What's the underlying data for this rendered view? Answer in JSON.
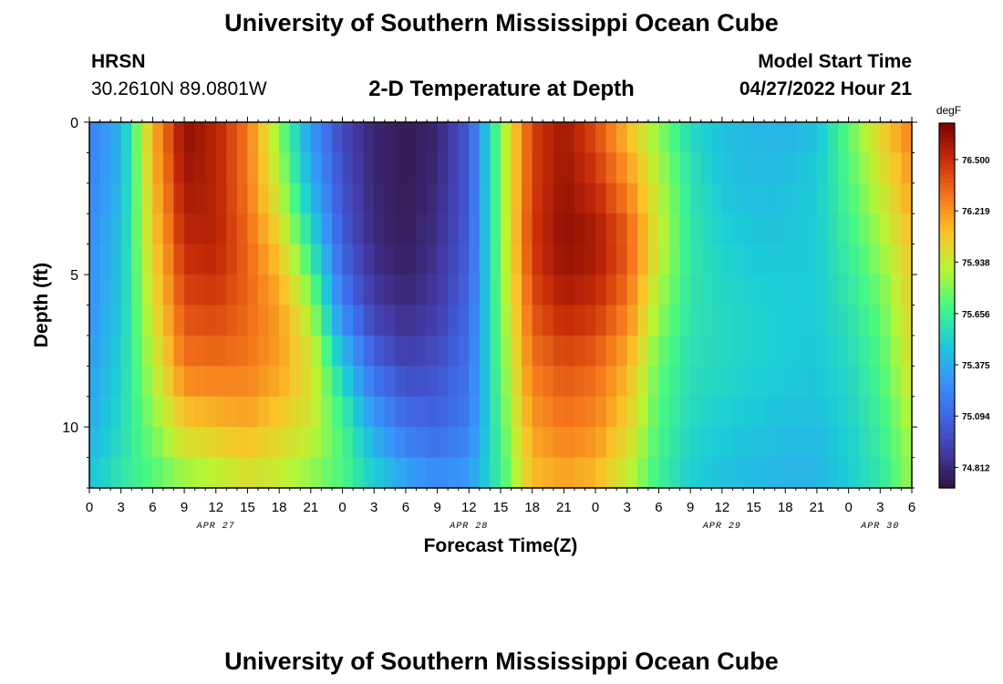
{
  "header": {
    "title": "University of Southern Mississippi Ocean Cube",
    "station": "HRSN",
    "coords": "30.2610N  89.0801W",
    "subtitle": "2-D Temperature at Depth",
    "model_start_label": "Model Start Time",
    "model_start_value": "04/27/2022 Hour 21"
  },
  "footer": {
    "title": "University of Southern Mississippi Ocean Cube"
  },
  "chart_data": {
    "type": "heatmap",
    "title": "2-D Temperature at Depth",
    "xlabel": "Forecast Time(Z)",
    "ylabel": "Depth (ft)",
    "y_ticks": [
      "0",
      "5",
      "10"
    ],
    "y_tick_values": [
      0,
      5,
      10
    ],
    "ylim": [
      0,
      12
    ],
    "y_inverted": true,
    "x_ticks": [
      "0",
      "3",
      "6",
      "9",
      "12",
      "15",
      "18",
      "21",
      "0",
      "3",
      "6",
      "9",
      "12",
      "15",
      "18",
      "21",
      "0",
      "3",
      "6",
      "9",
      "12",
      "15",
      "18",
      "21",
      "0",
      "3",
      "6"
    ],
    "x_tick_hours": [
      0,
      3,
      6,
      9,
      12,
      15,
      18,
      21,
      24,
      27,
      30,
      33,
      36,
      39,
      42,
      45,
      48,
      51,
      54,
      57,
      60,
      63,
      66,
      69,
      72,
      75,
      78
    ],
    "xlim_hours": [
      0,
      78
    ],
    "date_labels": [
      "APR 27",
      "APR 28",
      "APR 29",
      "APR 30"
    ],
    "date_label_hours": [
      12,
      36,
      60,
      75
    ],
    "colorbar": {
      "unit": "degF",
      "tick_labels": [
        "76.500",
        "76.219",
        "75.938",
        "75.656",
        "75.375",
        "75.094",
        "74.812"
      ],
      "tick_values": [
        76.5,
        76.219,
        75.938,
        75.656,
        75.375,
        75.094,
        74.812
      ],
      "range": [
        74.7,
        76.7
      ]
    },
    "hours": [
      0,
      3,
      6,
      9,
      12,
      15,
      18,
      21,
      24,
      27,
      30,
      33,
      36,
      39,
      42,
      45,
      48,
      51,
      54,
      57,
      60,
      63,
      66,
      69,
      72,
      75,
      78
    ],
    "depths": [
      0,
      2,
      4,
      6,
      8,
      10,
      12
    ],
    "values": [
      [
        75.2,
        75.22,
        75.26,
        75.28,
        75.32,
        75.38,
        75.48
      ],
      [
        75.4,
        75.42,
        75.46,
        75.48,
        75.52,
        75.56,
        75.62
      ],
      [
        76.15,
        76.1,
        76.05,
        75.98,
        75.9,
        75.8,
        75.7
      ],
      [
        76.65,
        76.6,
        76.52,
        76.42,
        76.3,
        76.05,
        75.8
      ],
      [
        76.55,
        76.55,
        76.55,
        76.45,
        76.32,
        76.1,
        75.85
      ],
      [
        76.3,
        76.3,
        76.35,
        76.35,
        76.3,
        76.15,
        75.95
      ],
      [
        75.8,
        75.9,
        76.05,
        76.2,
        76.2,
        76.05,
        75.9
      ],
      [
        75.3,
        75.4,
        75.6,
        75.85,
        76.0,
        75.95,
        75.8
      ],
      [
        74.95,
        75.0,
        75.05,
        75.2,
        75.5,
        75.7,
        75.7
      ],
      [
        74.8,
        74.8,
        74.82,
        74.9,
        75.1,
        75.35,
        75.55
      ],
      [
        74.75,
        74.75,
        74.76,
        74.82,
        74.95,
        75.15,
        75.4
      ],
      [
        74.8,
        74.82,
        74.85,
        74.9,
        75.0,
        75.1,
        75.3
      ],
      [
        75.05,
        75.05,
        75.06,
        75.1,
        75.15,
        75.2,
        75.35
      ],
      [
        75.8,
        75.8,
        75.8,
        75.78,
        75.75,
        75.7,
        75.65
      ],
      [
        76.45,
        76.45,
        76.48,
        76.4,
        76.3,
        76.2,
        76.1
      ],
      [
        76.6,
        76.62,
        76.65,
        76.55,
        76.4,
        76.3,
        76.15
      ],
      [
        76.4,
        76.5,
        76.6,
        76.5,
        76.35,
        76.25,
        76.1
      ],
      [
        76.1,
        76.25,
        76.4,
        76.3,
        76.15,
        76.05,
        75.9
      ],
      [
        75.8,
        75.9,
        75.95,
        75.85,
        75.75,
        75.7,
        75.65
      ],
      [
        75.55,
        75.6,
        75.62,
        75.6,
        75.58,
        75.55,
        75.5
      ],
      [
        75.45,
        75.48,
        75.52,
        75.55,
        75.55,
        75.5,
        75.45
      ],
      [
        75.42,
        75.44,
        75.48,
        75.52,
        75.52,
        75.48,
        75.42
      ],
      [
        75.4,
        75.45,
        75.48,
        75.5,
        75.5,
        75.45,
        75.4
      ],
      [
        75.45,
        75.5,
        75.5,
        75.5,
        75.48,
        75.45,
        75.4
      ],
      [
        75.75,
        75.7,
        75.65,
        75.6,
        75.55,
        75.52,
        75.5
      ],
      [
        76.05,
        75.95,
        75.85,
        75.75,
        75.7,
        75.65,
        75.6
      ],
      [
        76.3,
        76.2,
        76.1,
        76.05,
        76.0,
        75.9,
        75.85
      ]
    ]
  }
}
